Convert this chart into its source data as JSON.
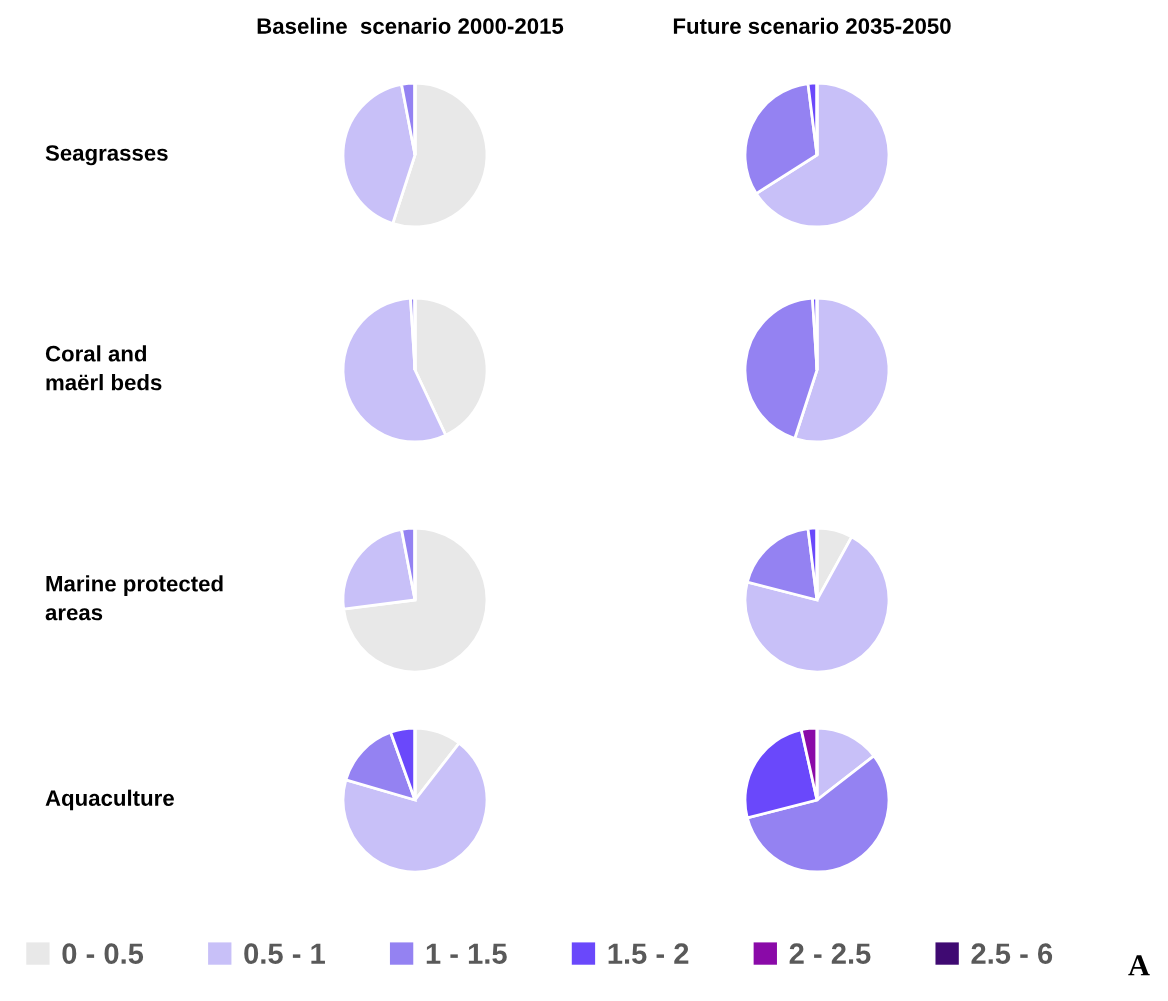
{
  "chart_data": [
    {
      "type": "pie",
      "title": "Baseline  scenario 2000-2015",
      "ylabel": "Seagrasses",
      "categories": [
        "0 - 0.5",
        "0.5 - 1",
        "1 - 1.5",
        "1.5 - 2",
        "2 - 2.5",
        "2.5 - 6"
      ],
      "values": [
        55,
        42,
        3,
        0,
        0,
        0
      ],
      "colors": [
        "#e8e8e8",
        "#c8c0f8",
        "#9482f2",
        "#6a48fb",
        "#8a0aa8",
        "#3f0a72"
      ],
      "legend": "bottom"
    },
    {
      "type": "pie",
      "title": "Future scenario 2035-2050",
      "categories": [
        null,
        null,
        null,
        null,
        null,
        null
      ],
      "values": [
        0,
        66,
        32,
        2,
        0,
        0
      ],
      "colors": [
        "#e8e8e8",
        "#c8c0f8",
        "#9482f2",
        "#6a48fb",
        "#8a0aa8",
        "#3f0a72"
      ]
    },
    {
      "type": "pie",
      "ylabel": "Coral and\nmaërl beds",
      "categories": [
        null,
        null,
        null,
        null,
        null,
        null
      ],
      "values": [
        43,
        56,
        1,
        0,
        0,
        0
      ],
      "colors": [
        "#e8e8e8",
        "#c8c0f8",
        "#9482f2",
        "#6a48fb",
        "#8a0aa8",
        "#3f0a72"
      ]
    },
    {
      "type": "pie",
      "categories": [
        null,
        null,
        null,
        null,
        null,
        null
      ],
      "values": [
        0,
        55,
        44,
        1,
        0,
        0
      ],
      "colors": [
        "#e8e8e8",
        "#c8c0f8",
        "#9482f2",
        "#6a48fb",
        "#8a0aa8",
        "#3f0a72"
      ]
    },
    {
      "type": "pie",
      "ylabel": "Marine protected\nareas",
      "categories": [
        null,
        null,
        null,
        null,
        null,
        null
      ],
      "values": [
        73,
        24,
        3,
        0,
        0,
        0
      ],
      "colors": [
        "#e8e8e8",
        "#c8c0f8",
        "#9482f2",
        "#6a48fb",
        "#8a0aa8",
        "#3f0a72"
      ]
    },
    {
      "type": "pie",
      "categories": [
        null,
        null,
        null,
        null,
        null,
        null
      ],
      "values": [
        8,
        71,
        19,
        2,
        0,
        0
      ],
      "colors": [
        "#e8e8e8",
        "#c8c0f8",
        "#9482f2",
        "#6a48fb",
        "#8a0aa8",
        "#3f0a72"
      ]
    },
    {
      "type": "pie",
      "ylabel": "Aquaculture",
      "categories": [
        null,
        null,
        null,
        null,
        null,
        null
      ],
      "values": [
        10.5,
        69,
        15,
        5.5,
        0,
        0
      ],
      "colors": [
        "#e8e8e8",
        "#c8c0f8",
        "#9482f2",
        "#6a48fb",
        "#8a0aa8",
        "#3f0a72"
      ]
    },
    {
      "type": "pie",
      "categories": [
        null,
        null,
        null,
        null,
        null,
        null
      ],
      "values": [
        0,
        14.5,
        56.5,
        25.5,
        3.5,
        0
      ],
      "colors": [
        "#e8e8e8",
        "#c8c0f8",
        "#9482f2",
        "#6a48fb",
        "#8a0aa8",
        "#3f0a72"
      ],
      "annotations": [
        "A"
      ]
    }
  ]
}
